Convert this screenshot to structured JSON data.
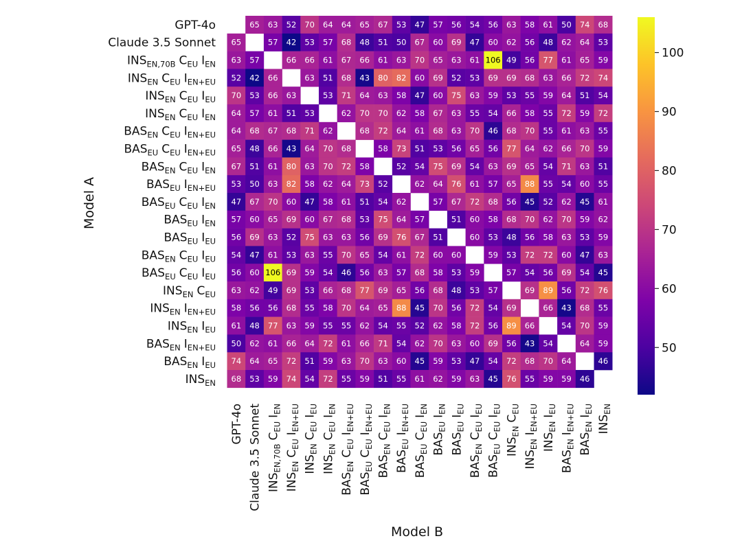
{
  "chart_data": {
    "type": "heatmap",
    "title": "",
    "xlabel": "Model B",
    "ylabel": "Model A",
    "colormap": "plasma",
    "vmin": 42,
    "vmax": 106,
    "colorbar_ticks": [
      50,
      60,
      70,
      80,
      90,
      100
    ],
    "models": [
      {
        "label": "GPT-4o",
        "parts": [
          [
            "GPT-4o",
            ""
          ]
        ]
      },
      {
        "label": "Claude 3.5 Sonnet",
        "parts": [
          [
            "Claude 3.5 Sonnet",
            ""
          ]
        ]
      },
      {
        "label": "INS EN,70B C EU I EN",
        "parts": [
          [
            "INS",
            "EN,70B"
          ],
          [
            "C",
            "EU"
          ],
          [
            "I",
            "EN"
          ]
        ]
      },
      {
        "label": "INS EN C EU I EN+EU",
        "parts": [
          [
            "INS",
            "EN"
          ],
          [
            "C",
            "EU"
          ],
          [
            "I",
            "EN+EU"
          ]
        ]
      },
      {
        "label": "INS EN C EU I EU",
        "parts": [
          [
            "INS",
            "EN"
          ],
          [
            "C",
            "EU"
          ],
          [
            "I",
            "EU"
          ]
        ]
      },
      {
        "label": "INS EN C EU I EN",
        "parts": [
          [
            "INS",
            "EN"
          ],
          [
            "C",
            "EU"
          ],
          [
            "I",
            "EN"
          ]
        ]
      },
      {
        "label": "BAS EN C EU I EN+EU",
        "parts": [
          [
            "BAS",
            "EN"
          ],
          [
            "C",
            "EU"
          ],
          [
            "I",
            "EN+EU"
          ]
        ]
      },
      {
        "label": "BAS EU C EU I EN+EU",
        "parts": [
          [
            "BAS",
            "EU"
          ],
          [
            "C",
            "EU"
          ],
          [
            "I",
            "EN+EU"
          ]
        ]
      },
      {
        "label": "BAS EN C EU I EN",
        "parts": [
          [
            "BAS",
            "EN"
          ],
          [
            "C",
            "EU"
          ],
          [
            "I",
            "EN"
          ]
        ]
      },
      {
        "label": "BAS EU I EN+EU",
        "parts": [
          [
            "BAS",
            "EU"
          ],
          [
            "I",
            "EN+EU"
          ]
        ]
      },
      {
        "label": "BAS EU C EU I EN",
        "parts": [
          [
            "BAS",
            "EU"
          ],
          [
            "C",
            "EU"
          ],
          [
            "I",
            "EN"
          ]
        ]
      },
      {
        "label": "BAS EU I EN",
        "parts": [
          [
            "BAS",
            "EU"
          ],
          [
            "I",
            "EN"
          ]
        ]
      },
      {
        "label": "BAS EU I EU",
        "parts": [
          [
            "BAS",
            "EU"
          ],
          [
            "I",
            "EU"
          ]
        ]
      },
      {
        "label": "BAS EN C EU I EU",
        "parts": [
          [
            "BAS",
            "EN"
          ],
          [
            "C",
            "EU"
          ],
          [
            "I",
            "EU"
          ]
        ]
      },
      {
        "label": "BAS EU C EU I EU",
        "parts": [
          [
            "BAS",
            "EU"
          ],
          [
            "C",
            "EU"
          ],
          [
            "I",
            "EU"
          ]
        ]
      },
      {
        "label": "INS EN C EU",
        "parts": [
          [
            "INS",
            "EN"
          ],
          [
            "C",
            "EU"
          ]
        ]
      },
      {
        "label": "INS EN I EN+EU",
        "parts": [
          [
            "INS",
            "EN"
          ],
          [
            "I",
            "EN+EU"
          ]
        ]
      },
      {
        "label": "INS EN I EU",
        "parts": [
          [
            "INS",
            "EN"
          ],
          [
            "I",
            "EU"
          ]
        ]
      },
      {
        "label": "BAS EN I EN+EU",
        "parts": [
          [
            "BAS",
            "EN"
          ],
          [
            "I",
            "EN+EU"
          ]
        ]
      },
      {
        "label": "BAS EN I EU",
        "parts": [
          [
            "BAS",
            "EN"
          ],
          [
            "I",
            "EU"
          ]
        ]
      },
      {
        "label": "INS EN",
        "parts": [
          [
            "INS",
            "EN"
          ]
        ]
      }
    ],
    "matrix": [
      [
        null,
        65,
        63,
        52,
        70,
        64,
        64,
        65,
        67,
        53,
        47,
        57,
        56,
        54,
        56,
        63,
        58,
        61,
        50,
        74,
        68
      ],
      [
        65,
        null,
        57,
        42,
        53,
        57,
        68,
        48,
        51,
        50,
        67,
        60,
        69,
        47,
        60,
        62,
        56,
        48,
        62,
        64,
        53
      ],
      [
        63,
        57,
        null,
        66,
        66,
        61,
        67,
        66,
        61,
        63,
        70,
        65,
        63,
        61,
        106,
        49,
        56,
        77,
        61,
        65,
        59
      ],
      [
        52,
        42,
        66,
        null,
        63,
        51,
        68,
        43,
        80,
        82,
        60,
        69,
        52,
        53,
        69,
        69,
        68,
        63,
        66,
        72,
        74
      ],
      [
        70,
        53,
        66,
        63,
        null,
        53,
        71,
        64,
        63,
        58,
        47,
        60,
        75,
        63,
        59,
        53,
        55,
        59,
        64,
        51,
        54
      ],
      [
        64,
        57,
        61,
        51,
        53,
        null,
        62,
        70,
        70,
        62,
        58,
        67,
        63,
        55,
        54,
        66,
        58,
        55,
        72,
        59,
        72
      ],
      [
        64,
        68,
        67,
        68,
        71,
        62,
        null,
        68,
        72,
        64,
        61,
        68,
        63,
        70,
        46,
        68,
        70,
        55,
        61,
        63,
        55
      ],
      [
        65,
        48,
        66,
        43,
        64,
        70,
        68,
        null,
        58,
        73,
        51,
        53,
        56,
        65,
        56,
        77,
        64,
        62,
        66,
        70,
        59
      ],
      [
        67,
        51,
        61,
        80,
        63,
        70,
        72,
        58,
        null,
        52,
        54,
        75,
        69,
        54,
        63,
        69,
        65,
        54,
        71,
        63,
        51
      ],
      [
        53,
        50,
        63,
        82,
        58,
        62,
        64,
        73,
        52,
        null,
        62,
        64,
        76,
        61,
        57,
        65,
        88,
        55,
        54,
        60,
        55
      ],
      [
        47,
        67,
        70,
        60,
        47,
        58,
        61,
        51,
        54,
        62,
        null,
        57,
        67,
        72,
        68,
        56,
        45,
        52,
        62,
        45,
        61
      ],
      [
        57,
        60,
        65,
        69,
        60,
        67,
        68,
        53,
        75,
        64,
        57,
        null,
        51,
        60,
        58,
        68,
        70,
        62,
        70,
        59,
        62
      ],
      [
        56,
        69,
        63,
        52,
        75,
        63,
        63,
        56,
        69,
        76,
        67,
        51,
        null,
        60,
        53,
        48,
        56,
        58,
        63,
        53,
        59
      ],
      [
        54,
        47,
        61,
        53,
        63,
        55,
        70,
        65,
        54,
        61,
        72,
        60,
        60,
        null,
        59,
        53,
        72,
        72,
        60,
        47,
        63
      ],
      [
        56,
        60,
        106,
        69,
        59,
        54,
        46,
        56,
        63,
        57,
        68,
        58,
        53,
        59,
        null,
        57,
        54,
        56,
        69,
        54,
        45
      ],
      [
        63,
        62,
        49,
        69,
        53,
        66,
        68,
        77,
        69,
        65,
        56,
        68,
        48,
        53,
        57,
        null,
        69,
        89,
        56,
        72,
        76
      ],
      [
        58,
        56,
        56,
        68,
        55,
        58,
        70,
        64,
        65,
        88,
        45,
        70,
        56,
        72,
        54,
        69,
        null,
        66,
        43,
        68,
        55
      ],
      [
        61,
        48,
        77,
        63,
        59,
        55,
        55,
        62,
        54,
        55,
        52,
        62,
        58,
        72,
        56,
        89,
        66,
        null,
        54,
        70,
        59
      ],
      [
        50,
        62,
        61,
        66,
        64,
        72,
        61,
        66,
        71,
        54,
        62,
        70,
        63,
        60,
        69,
        56,
        43,
        54,
        null,
        64,
        59
      ],
      [
        74,
        64,
        65,
        72,
        51,
        59,
        63,
        70,
        63,
        60,
        45,
        59,
        53,
        47,
        54,
        72,
        68,
        70,
        64,
        null,
        46
      ],
      [
        68,
        53,
        59,
        74,
        54,
        72,
        55,
        59,
        51,
        55,
        61,
        62,
        59,
        63,
        45,
        76,
        55,
        59,
        59,
        46,
        null
      ]
    ]
  }
}
